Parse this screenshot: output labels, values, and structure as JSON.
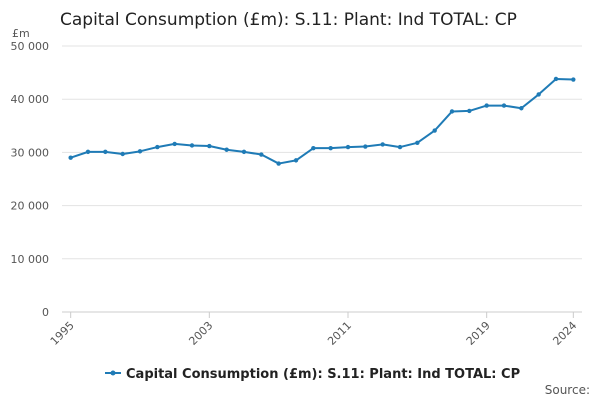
{
  "chart_data": {
    "type": "line",
    "title": "Capital Consumption (£m): S.11: Plant: Ind TOTAL: CP",
    "ylabel": "£m",
    "xlabel": "",
    "ylim": [
      0,
      50000
    ],
    "yticks": [
      0,
      10000,
      20000,
      30000,
      40000,
      50000
    ],
    "ytick_labels": [
      "0",
      "10 000",
      "20 000",
      "30 000",
      "40 000",
      "50 000"
    ],
    "xticks": [
      "1995",
      "2003",
      "2011",
      "2019",
      "2024"
    ],
    "grid": true,
    "legend_position": "bottom",
    "source_label": "Source:",
    "series": [
      {
        "name": "Capital Consumption (£m): S.11: Plant: Ind TOTAL: CP",
        "color": "#1f7bb6",
        "x": [
          1995,
          1996,
          1997,
          1998,
          1999,
          2000,
          2001,
          2002,
          2003,
          2004,
          2005,
          2006,
          2007,
          2008,
          2009,
          2010,
          2011,
          2012,
          2013,
          2014,
          2015,
          2016,
          2017,
          2018,
          2019,
          2020,
          2021,
          2022,
          2023,
          2024
        ],
        "values": [
          29000,
          30100,
          30100,
          29700,
          30200,
          31000,
          31600,
          31300,
          31200,
          30500,
          30100,
          29600,
          27900,
          28500,
          30800,
          30800,
          31000,
          31100,
          31500,
          31000,
          31800,
          34100,
          37700,
          37800,
          38800,
          38800,
          38300,
          40900,
          43800,
          43700
        ]
      }
    ]
  }
}
